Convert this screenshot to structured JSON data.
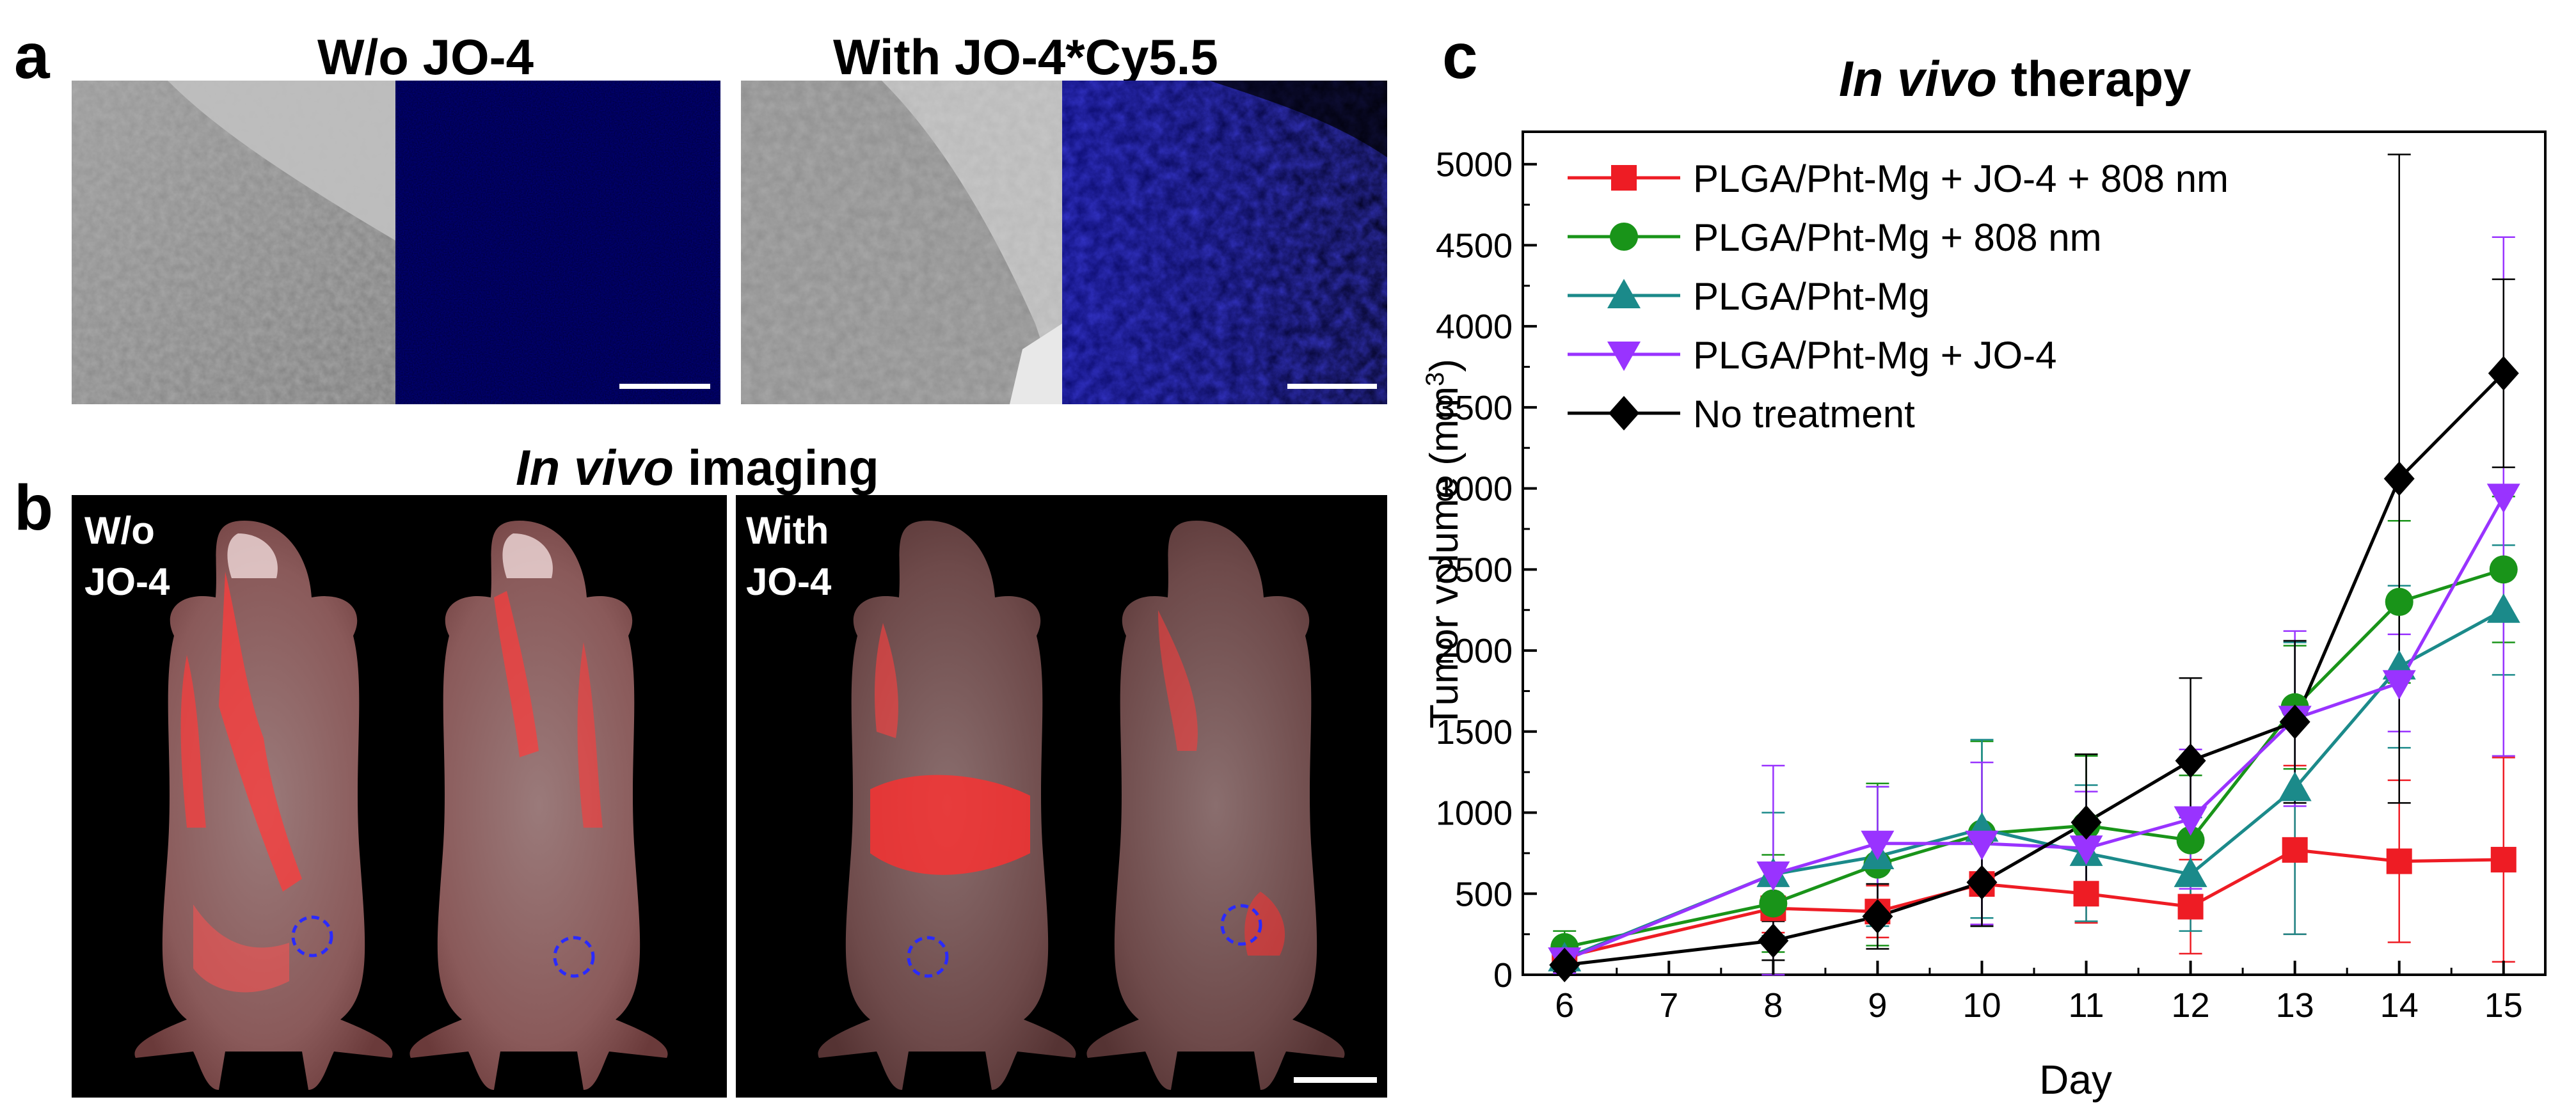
{
  "panel_a": {
    "label": "a",
    "left_title": "W/o JO-4",
    "right_title": "With JO-4*Cy5.5"
  },
  "panel_b": {
    "label": "b",
    "title_italic": "In vivo",
    "title_rest": " imaging",
    "left_caption_line1": "W/o",
    "left_caption_line2": "JO-4",
    "right_caption_line1": "With",
    "right_caption_line2": "JO-4"
  },
  "panel_c": {
    "label": "c",
    "title_italic": "In vivo",
    "title_rest": " therapy"
  },
  "chart_data": {
    "type": "line",
    "title": "In vivo therapy",
    "xlabel": "Day",
    "ylabel": "Tumor volume (mm3)",
    "xlim": [
      5.6,
      15.4
    ],
    "ylim": [
      0,
      5200
    ],
    "x_ticks": [
      6,
      7,
      8,
      9,
      10,
      11,
      12,
      13,
      14,
      15
    ],
    "y_ticks": [
      0,
      500,
      1000,
      1500,
      2000,
      2500,
      3000,
      3500,
      4000,
      4500,
      5000
    ],
    "legend_position": "top-left",
    "series": [
      {
        "name": "PLGA/Pht-Mg + JO-4 + 808 nm",
        "color": "#ee1c24",
        "marker": "square",
        "x": [
          6,
          8,
          9,
          10,
          11,
          12,
          13,
          14,
          15
        ],
        "y": [
          110,
          410,
          390,
          560,
          500,
          420,
          770,
          700,
          710
        ],
        "err": [
          60,
          150,
          160,
          250,
          180,
          290,
          520,
          500,
          630
        ]
      },
      {
        "name": "PLGA/Pht-Mg + 808 nm",
        "color": "#199419",
        "marker": "circle",
        "x": [
          6,
          8,
          9,
          10,
          11,
          12,
          13,
          14,
          15
        ],
        "y": [
          170,
          440,
          680,
          870,
          920,
          830,
          1650,
          2300,
          2500
        ],
        "err": [
          100,
          300,
          500,
          570,
          430,
          400,
          380,
          500,
          450
        ]
      },
      {
        "name": "PLGA/Pht-Mg",
        "color": "#1b8a8a",
        "marker": "triangle-up",
        "x": [
          6,
          8,
          9,
          10,
          11,
          12,
          13,
          14,
          15
        ],
        "y": [
          100,
          620,
          730,
          900,
          750,
          620,
          1150,
          1900,
          2250
        ],
        "err": [
          80,
          380,
          430,
          550,
          420,
          350,
          900,
          500,
          400
        ]
      },
      {
        "name": "PLGA/Pht-Mg + JO-4",
        "color": "#9933ff",
        "marker": "triangle-down",
        "x": [
          6,
          8,
          9,
          10,
          11,
          12,
          13,
          14,
          15
        ],
        "y": [
          90,
          620,
          810,
          810,
          780,
          960,
          1580,
          1800,
          2950
        ],
        "err": [
          80,
          670,
          350,
          500,
          350,
          430,
          540,
          300,
          1600
        ]
      },
      {
        "name": "No treatment",
        "color": "#000000",
        "marker": "diamond",
        "x": [
          6,
          8,
          9,
          10,
          11,
          12,
          13,
          14,
          15
        ],
        "y": [
          60,
          210,
          360,
          570,
          940,
          1320,
          1560,
          3060,
          3710
        ],
        "err": [
          40,
          120,
          200,
          270,
          420,
          510,
          500,
          2000,
          580
        ]
      }
    ]
  }
}
